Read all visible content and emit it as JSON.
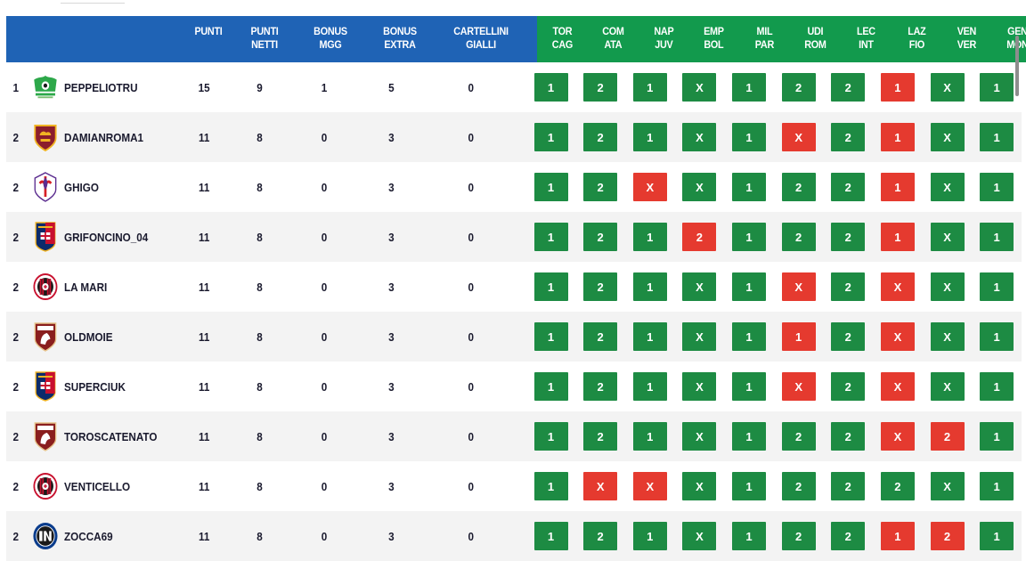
{
  "header": {
    "punti": "PUNTI",
    "netti": "PUNTI\nNETTI",
    "mgg": "BONUS\nMGG",
    "extra": "BONUS\nEXTRA",
    "gialli": "CARTELLINI\nGIALLI",
    "matches": [
      "TOR\nCAG",
      "COM\nATA",
      "NAP\nJUV",
      "EMP\nBOL",
      "MIL\nPAR",
      "UDI\nROM",
      "LEC\nINT",
      "LAZ\nFIO",
      "VEN\nVER",
      "GEN\nMON"
    ]
  },
  "colors": {
    "header_blue": "#1f63b5",
    "header_green": "#129a4d",
    "correct": "#1d8b43",
    "wrong": "#e53a2f"
  },
  "rows": [
    {
      "rank": "1",
      "logo": "green-team-logo",
      "name": "PEPPELIOTRU",
      "punti": "15",
      "netti": "9",
      "mgg": "1",
      "extra": "5",
      "gialli": "0",
      "picks": [
        "1",
        "2",
        "1",
        "X",
        "1",
        "2",
        "2",
        "1",
        "X",
        "1"
      ],
      "status": [
        "ok",
        "ok",
        "ok",
        "ok",
        "ok",
        "ok",
        "ok",
        "ko",
        "ok",
        "ok"
      ]
    },
    {
      "rank": "2",
      "logo": "roma-crest",
      "name": "DAMIANROMA1",
      "punti": "11",
      "netti": "8",
      "mgg": "0",
      "extra": "3",
      "gialli": "0",
      "picks": [
        "1",
        "2",
        "1",
        "X",
        "1",
        "X",
        "2",
        "1",
        "X",
        "1"
      ],
      "status": [
        "ok",
        "ok",
        "ok",
        "ok",
        "ok",
        "ko",
        "ok",
        "ko",
        "ok",
        "ok"
      ]
    },
    {
      "rank": "2",
      "logo": "fiorentina-crest",
      "name": "GHIGO",
      "punti": "11",
      "netti": "8",
      "mgg": "0",
      "extra": "3",
      "gialli": "0",
      "picks": [
        "1",
        "2",
        "X",
        "X",
        "1",
        "2",
        "2",
        "1",
        "X",
        "1"
      ],
      "status": [
        "ok",
        "ok",
        "ko",
        "ok",
        "ok",
        "ok",
        "ok",
        "ko",
        "ok",
        "ok"
      ]
    },
    {
      "rank": "2",
      "logo": "genoa-crest",
      "name": "GRIFONCINO_04",
      "punti": "11",
      "netti": "8",
      "mgg": "0",
      "extra": "3",
      "gialli": "0",
      "picks": [
        "1",
        "2",
        "1",
        "2",
        "1",
        "2",
        "2",
        "1",
        "X",
        "1"
      ],
      "status": [
        "ok",
        "ok",
        "ok",
        "ko",
        "ok",
        "ok",
        "ok",
        "ko",
        "ok",
        "ok"
      ]
    },
    {
      "rank": "2",
      "logo": "milan-crest",
      "name": "LA MARI",
      "punti": "11",
      "netti": "8",
      "mgg": "0",
      "extra": "3",
      "gialli": "0",
      "picks": [
        "1",
        "2",
        "1",
        "X",
        "1",
        "X",
        "2",
        "X",
        "X",
        "1"
      ],
      "status": [
        "ok",
        "ok",
        "ok",
        "ok",
        "ok",
        "ko",
        "ok",
        "ko",
        "ok",
        "ok"
      ]
    },
    {
      "rank": "2",
      "logo": "torino-crest",
      "name": "OLDMOIE",
      "punti": "11",
      "netti": "8",
      "mgg": "0",
      "extra": "3",
      "gialli": "0",
      "picks": [
        "1",
        "2",
        "1",
        "X",
        "1",
        "1",
        "2",
        "X",
        "X",
        "1"
      ],
      "status": [
        "ok",
        "ok",
        "ok",
        "ok",
        "ok",
        "ko",
        "ok",
        "ko",
        "ok",
        "ok"
      ]
    },
    {
      "rank": "2",
      "logo": "genoa-crest",
      "name": "SUPERCIUK",
      "punti": "11",
      "netti": "8",
      "mgg": "0",
      "extra": "3",
      "gialli": "0",
      "picks": [
        "1",
        "2",
        "1",
        "X",
        "1",
        "X",
        "2",
        "X",
        "X",
        "1"
      ],
      "status": [
        "ok",
        "ok",
        "ok",
        "ok",
        "ok",
        "ko",
        "ok",
        "ko",
        "ok",
        "ok"
      ]
    },
    {
      "rank": "2",
      "logo": "torino-crest",
      "name": "TOROSCATENATO",
      "punti": "11",
      "netti": "8",
      "mgg": "0",
      "extra": "3",
      "gialli": "0",
      "picks": [
        "1",
        "2",
        "1",
        "X",
        "1",
        "2",
        "2",
        "X",
        "2",
        "1"
      ],
      "status": [
        "ok",
        "ok",
        "ok",
        "ok",
        "ok",
        "ok",
        "ok",
        "ko",
        "ko",
        "ok"
      ]
    },
    {
      "rank": "2",
      "logo": "milan-crest",
      "name": "VENTICELLO",
      "punti": "11",
      "netti": "8",
      "mgg": "0",
      "extra": "3",
      "gialli": "0",
      "picks": [
        "1",
        "X",
        "X",
        "X",
        "1",
        "2",
        "2",
        "2",
        "X",
        "1"
      ],
      "status": [
        "ok",
        "ko",
        "ko",
        "ok",
        "ok",
        "ok",
        "ok",
        "ok",
        "ok",
        "ok"
      ]
    },
    {
      "rank": "2",
      "logo": "inter-crest",
      "name": "ZOCCA69",
      "punti": "11",
      "netti": "8",
      "mgg": "0",
      "extra": "3",
      "gialli": "0",
      "picks": [
        "1",
        "2",
        "1",
        "X",
        "1",
        "2",
        "2",
        "1",
        "2",
        "1"
      ],
      "status": [
        "ok",
        "ok",
        "ok",
        "ok",
        "ok",
        "ok",
        "ok",
        "ko",
        "ko",
        "ok"
      ]
    }
  ]
}
